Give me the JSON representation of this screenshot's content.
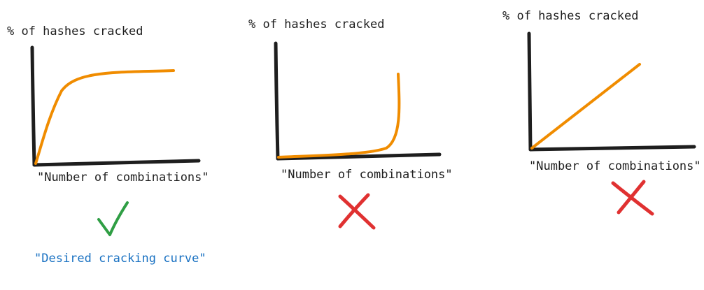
{
  "colors": {
    "axis": "#1e1e1e",
    "curve": "#f08c00",
    "check": "#2f9e44",
    "cross": "#e03131",
    "caption": "#1971c2"
  },
  "panels": [
    {
      "y_axis_label": "% of hashes cracked",
      "x_axis_label": "\"Number of combinations\"",
      "curve_shape": "logarithmic-saturating",
      "verdict": "check-icon",
      "caption": "\"Desired cracking curve\""
    },
    {
      "y_axis_label": "% of hashes cracked",
      "x_axis_label": "\"Number of combinations\"",
      "curve_shape": "exponential",
      "verdict": "cross-icon"
    },
    {
      "y_axis_label": "% of hashes cracked",
      "x_axis_label": "\"Number of combinations\"",
      "curve_shape": "linear",
      "verdict": "cross-icon"
    }
  ]
}
